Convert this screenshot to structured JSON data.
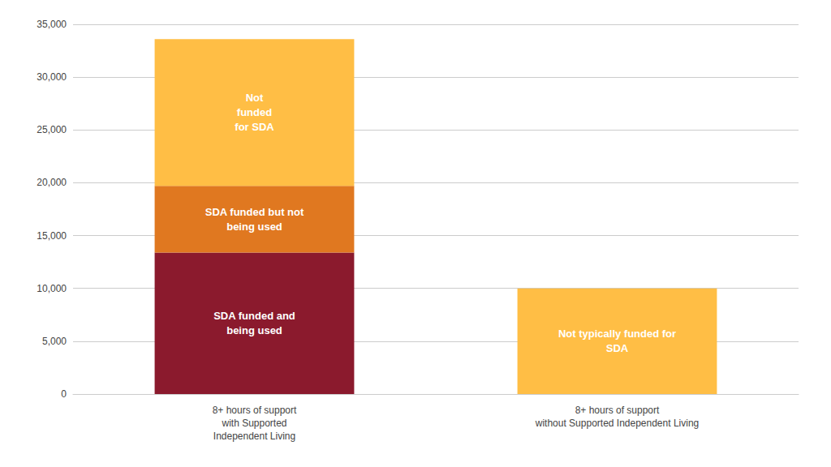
{
  "chart_data": {
    "type": "bar",
    "stacked": true,
    "categories": [
      "8+ hours of support\nwith Supported\nIndependent Living",
      "8+ hours of support\nwithout Supported Independent Living"
    ],
    "series": [
      {
        "name": "SDA funded and\nbeing used",
        "color": "#8B1A2D",
        "values": [
          13400,
          null
        ]
      },
      {
        "name": "SDA funded but not\nbeing used",
        "color": "#E07820",
        "values": [
          6300,
          null
        ]
      },
      {
        "name": "Not\nfunded\nfor SDA",
        "color": "#FFBE45",
        "values": [
          13900,
          null
        ]
      },
      {
        "name": "Not typically funded for\nSDA",
        "color": "#FFBE45",
        "values": [
          null,
          10000
        ]
      }
    ],
    "ylim": [
      0,
      35000
    ],
    "yticks": [
      0,
      {
        "value": 5000,
        "label": "5,000"
      },
      {
        "value": 10000,
        "label": "10,000"
      },
      {
        "value": 15000,
        "label": "15,000"
      },
      {
        "value": 20000,
        "label": "20,000"
      },
      {
        "value": 25000,
        "label": "25,000"
      },
      {
        "value": 30000,
        "label": "30,000"
      },
      {
        "value": 35000,
        "label": "35,000"
      }
    ],
    "grid": true
  }
}
